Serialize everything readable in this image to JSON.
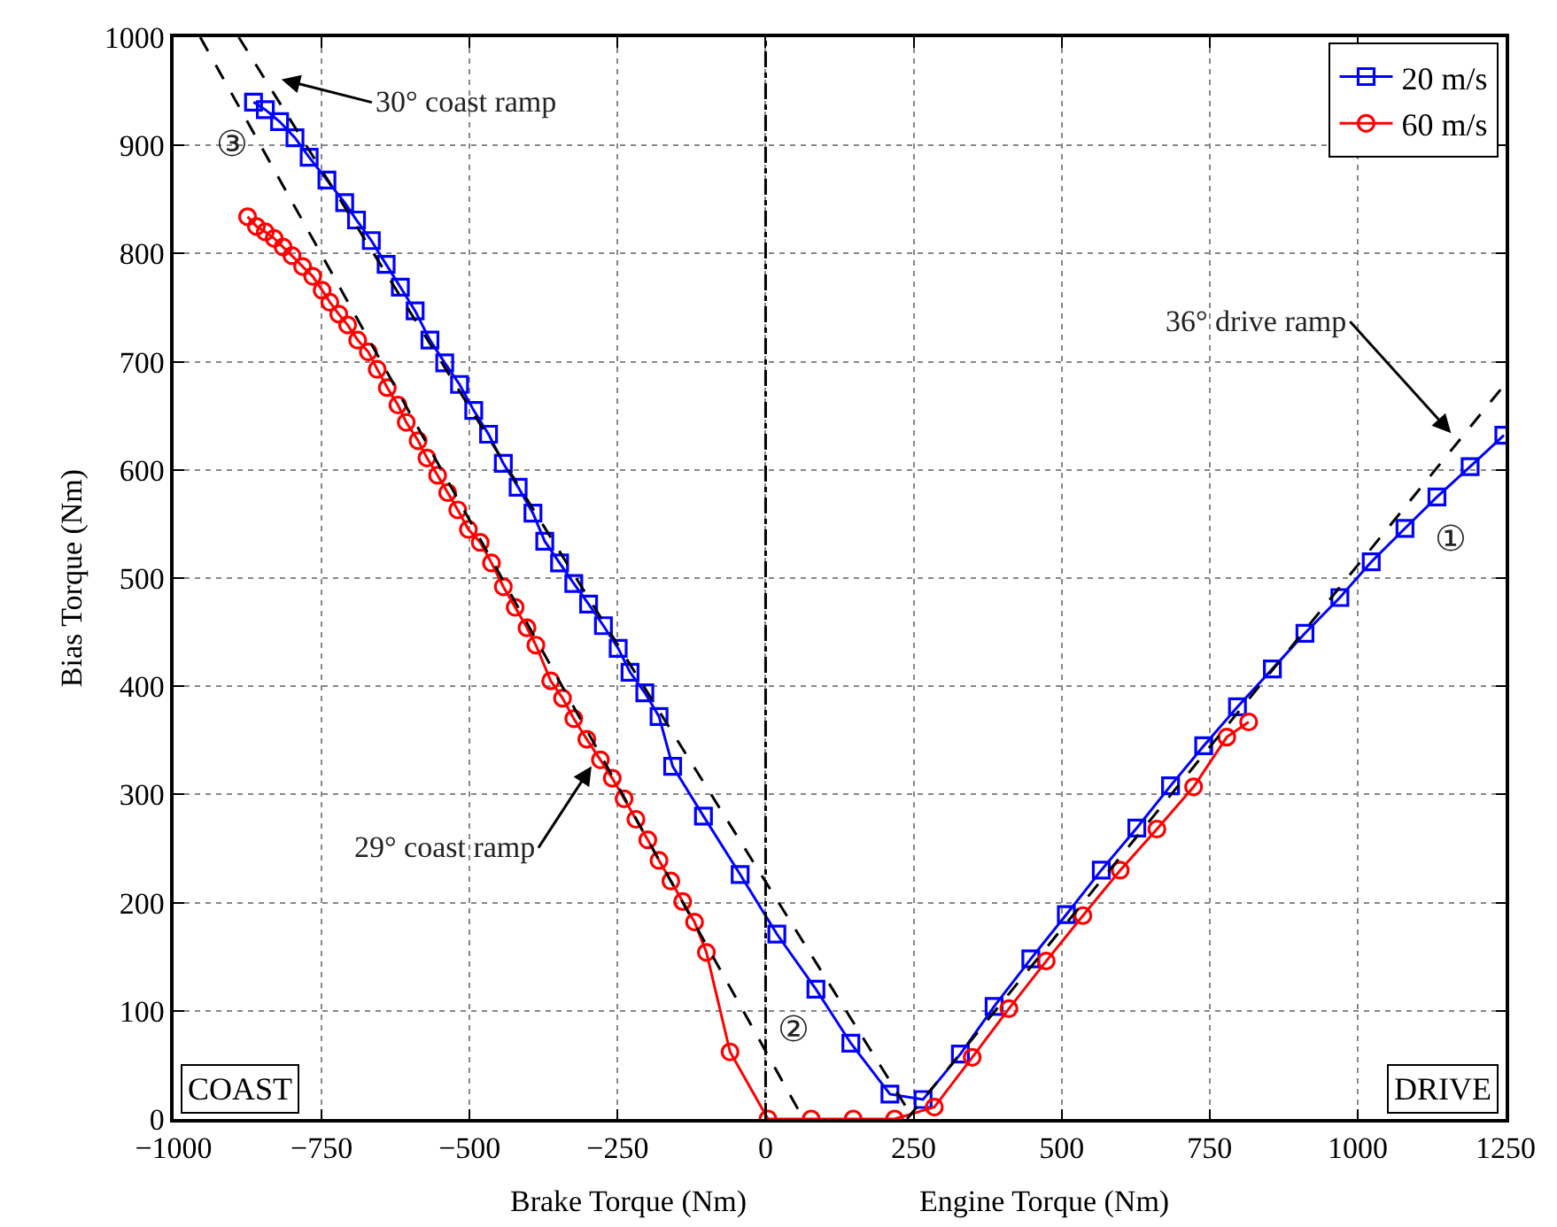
{
  "chart_data": {
    "type": "line",
    "xlabel": "Brake Torque (Nm)",
    "ylabel": "Bias Torque (Nm)",
    "xlim": [
      -1000,
      1250
    ],
    "ylim": [
      0,
      1000
    ],
    "xticks": [
      {
        "value": -1000,
        "label": "−1000"
      },
      {
        "value": -750,
        "label": "−750"
      },
      {
        "value": -500,
        "label": "−500"
      },
      {
        "value": -250,
        "label": "−250"
      },
      0,
      250,
      500,
      750,
      1000,
      1250
    ],
    "yticks": [
      0,
      100,
      200,
      300,
      400,
      500,
      600,
      700,
      800,
      900,
      1000
    ],
    "grid": true,
    "legend": "top right",
    "series": [
      {
        "name": "20 m/s",
        "color": "#0000ff",
        "marker": "square",
        "line_style": "solid",
        "x": [
          -865,
          -845,
          -821,
          -795,
          -771,
          -741,
          -711,
          -691,
          -666,
          -641,
          -617,
          -592,
          -567,
          -542,
          -517,
          -493,
          -468,
          -443,
          -418,
          -393,
          -373,
          -348,
          -324,
          -299,
          -274,
          -249,
          -229,
          -204,
          -180,
          -157,
          -105,
          -43,
          19,
          85,
          144,
          210,
          266,
          329,
          386,
          448,
          508,
          567,
          627,
          684,
          740,
          797,
          856,
          911,
          970,
          1023,
          1080,
          1134,
          1190,
          1247
        ],
        "values": [
          940,
          933,
          922,
          907,
          889,
          868,
          847,
          831,
          812,
          790,
          769,
          747,
          720,
          699,
          679,
          655,
          633,
          606,
          584,
          560,
          534,
          514,
          495,
          476,
          456,
          435,
          413,
          394,
          372,
          326,
          280,
          226,
          171,
          120,
          70,
          23,
          18,
          60,
          104,
          148,
          189,
          230,
          269,
          308,
          345,
          381,
          416,
          449,
          482,
          515,
          546,
          575,
          603,
          632
        ]
      },
      {
        "name": "60 m/s",
        "color": "#ff0000",
        "marker": "circle",
        "line_style": "solid",
        "x": [
          -875,
          -860,
          -845,
          -830,
          -815,
          -800,
          -782,
          -765,
          -749,
          -736,
          -721,
          -706,
          -689,
          -671,
          -656,
          -639,
          -621,
          -607,
          -587,
          -572,
          -554,
          -537,
          -520,
          -502,
          -482,
          -463,
          -443,
          -423,
          -403,
          -388,
          -363,
          -343,
          -324,
          -302,
          -279,
          -259,
          -239,
          -219,
          -199,
          -180,
          -160,
          -140,
          -120,
          -100,
          -60,
          4,
          77,
          148,
          218,
          285,
          349,
          411,
          474,
          536,
          599,
          661,
          723,
          779,
          816
        ],
        "values": [
          834,
          825,
          820,
          814,
          806,
          798,
          788,
          779,
          766,
          755,
          744,
          734,
          720,
          709,
          693,
          676,
          660,
          644,
          627,
          611,
          595,
          579,
          563,
          545,
          533,
          514,
          492,
          473,
          454,
          438,
          405,
          389,
          370,
          351,
          332,
          315,
          296,
          277,
          258,
          239,
          220,
          201,
          182,
          154,
          62,
          0,
          0,
          0,
          0,
          11,
          57,
          102,
          146,
          188,
          230,
          268,
          307,
          353,
          367
        ]
      },
      {
        "color": "#000000",
        "marker": "none",
        "line_style": "dashed",
        "x": [
          -890,
          250
        ],
        "values": [
          1000,
          0
        ]
      },
      {
        "color": "#000000",
        "marker": "none",
        "line_style": "dashed",
        "x": [
          -955,
          64
        ],
        "values": [
          1000,
          0
        ]
      },
      {
        "color": "#000000",
        "marker": "none",
        "line_style": "dashed",
        "x": [
          239,
          1250
        ],
        "values": [
          0,
          680
        ]
      }
    ],
    "ref_lines": [
      {
        "axis": "x",
        "value": 0,
        "color": "#000000",
        "line_style": "dashdot"
      }
    ],
    "annotations": [
      "30° coast ramp",
      {
        "text": "29° coast ramp",
        "x": -294,
        "y": 326
      },
      "36° drive ramp",
      "③",
      "②",
      "①",
      "COAST",
      "DRIVE",
      "Engine Torque (Nm)"
    ]
  }
}
